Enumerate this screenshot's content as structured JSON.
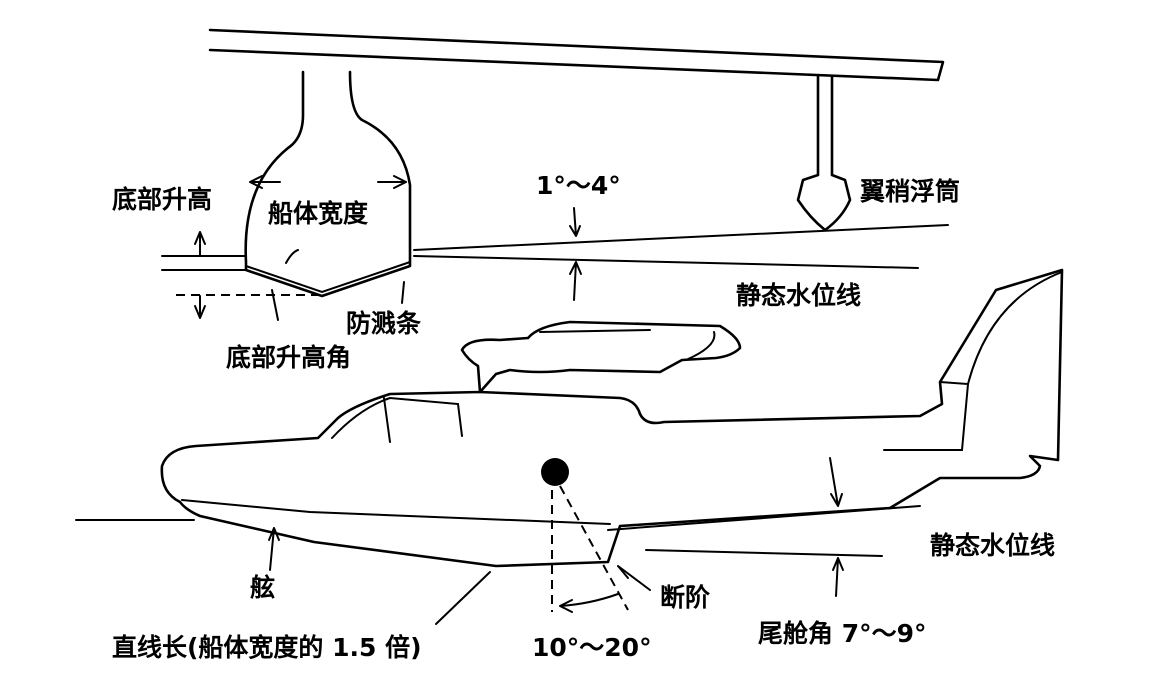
{
  "labels": {
    "chine_height": "底部升高",
    "hull_width": "船体宽度",
    "wing_angle": "1°～4°",
    "wingtip_float": "翼稍浮筒",
    "waterline_top": "静态水位线",
    "spray_strip": "防溅条",
    "deadrise_angle": "底部升高角",
    "waterline_bottom": "静态水位线",
    "keel": "舷",
    "step": "断阶",
    "straight_length": "直线长(船体宽度的 1.5 倍)",
    "step_angle": "10°～20°",
    "afterbody_angle": "尾舱角 7°～9°"
  }
}
